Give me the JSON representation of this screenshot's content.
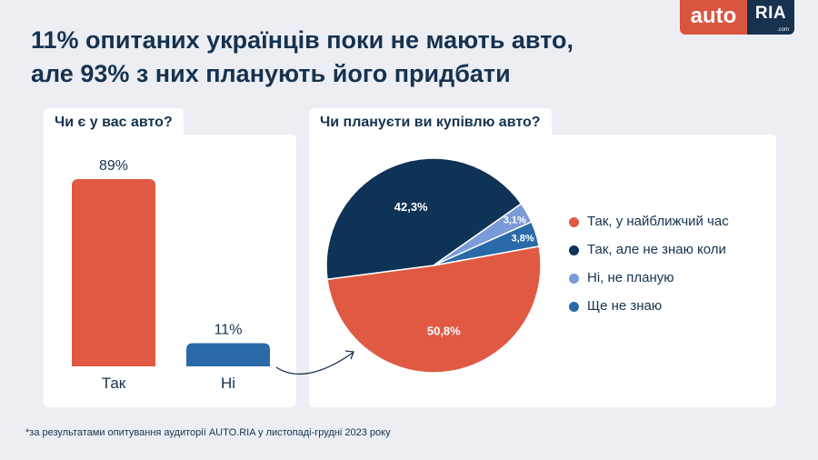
{
  "title": {
    "line1": "11% опитаних українців поки не мають авто,",
    "line2": "але 93% з них планують його придбати"
  },
  "logo": {
    "auto": "auto",
    "ria": "RIA",
    "com": ".com"
  },
  "colors": {
    "red": "#e05a43",
    "navy": "#0f3356",
    "blue": "#2a6aa8",
    "light_blue": "#7b9ad8",
    "bar_blue": "#2a6aa8"
  },
  "chart_data": [
    {
      "type": "bar",
      "title": "Чи є у вас авто?",
      "categories": [
        "Так",
        "Ні"
      ],
      "values": [
        89,
        11
      ],
      "value_labels": [
        "89%",
        "11%"
      ],
      "colors": [
        "#e05a43",
        "#2a6aa8"
      ],
      "ylim": [
        0,
        89
      ]
    },
    {
      "type": "pie",
      "title": "Чи плануєти ви купівлю авто?",
      "labels": [
        "Так, у найближчий час",
        "Так, але не знаю коли",
        "Ні, не планую",
        "Ще не знаю"
      ],
      "values": [
        50.8,
        42.3,
        3.1,
        3.8
      ],
      "value_labels": [
        "50,8%",
        "42,3%",
        "3,1%",
        "3,8%"
      ],
      "colors": [
        "#e05a43",
        "#0f3356",
        "#7b9ad8",
        "#2a6aa8"
      ],
      "legend_position": "right"
    }
  ],
  "footnote": "*за результатами опитування аудиторії AUTO.RIA у листопаді-грудні 2023 року"
}
